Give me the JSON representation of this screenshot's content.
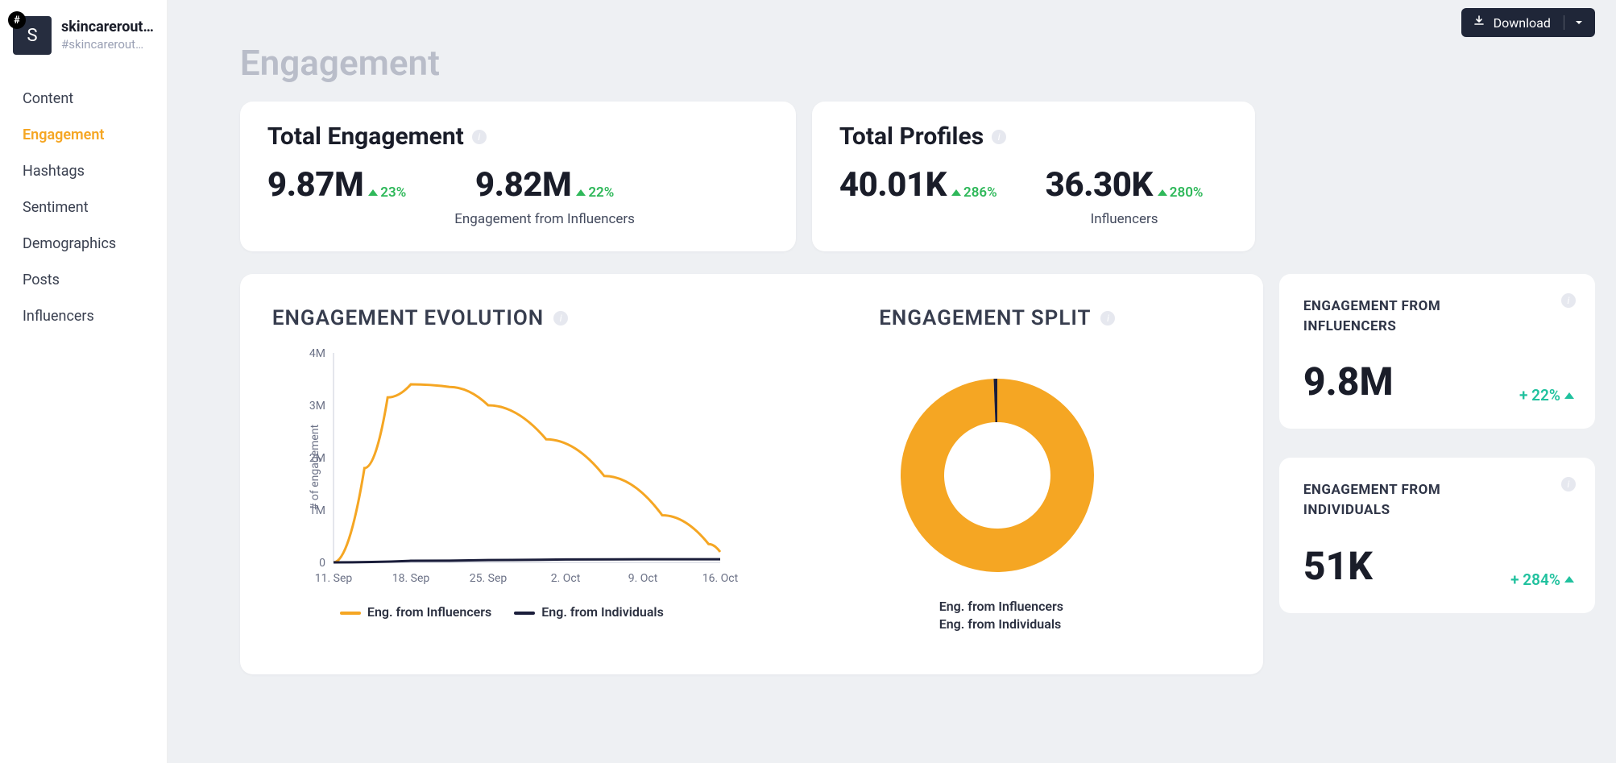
{
  "colors": {
    "accent": "#f5a623",
    "dark": "#1f2638",
    "pos_green": "#2fb85a",
    "teal": "#20c19e",
    "bg": "#eef0f3",
    "card": "#ffffff",
    "muted": "#b9bdc9",
    "text": "#1a1d29",
    "grid": "#d9dce4",
    "navy": "#1a1d3a"
  },
  "brand": {
    "badge_letter": "S",
    "hash": "#",
    "title": "skincarerout…",
    "subtitle": "#skincarerout…"
  },
  "nav": {
    "items": [
      {
        "label": "Content",
        "active": false
      },
      {
        "label": "Engagement",
        "active": true
      },
      {
        "label": "Hashtags",
        "active": false
      },
      {
        "label": "Sentiment",
        "active": false
      },
      {
        "label": "Demographics",
        "active": false
      },
      {
        "label": "Posts",
        "active": false
      },
      {
        "label": "Influencers",
        "active": false
      }
    ]
  },
  "download": {
    "label": "Download"
  },
  "page": {
    "title": "Engagement"
  },
  "total_engagement": {
    "title": "Total Engagement",
    "primary": {
      "value": "9.87M",
      "delta": "23%",
      "dir": "up"
    },
    "secondary": {
      "value": "9.82M",
      "delta": "22%",
      "dir": "up",
      "sub": "Engagement from Influencers"
    }
  },
  "total_profiles": {
    "title": "Total Profiles",
    "primary": {
      "value": "40.01K",
      "delta": "286%",
      "dir": "up"
    },
    "secondary": {
      "value": "36.30K",
      "delta": "280%",
      "dir": "up",
      "sub": "Influencers"
    }
  },
  "evolution": {
    "title": "ENGAGEMENT EVOLUTION",
    "type": "line",
    "ylabel": "# of engagement",
    "yticks": [
      "0",
      "1M",
      "2M",
      "3M",
      "4M"
    ],
    "ylim": [
      0,
      4000000
    ],
    "xticks": [
      "11. Sep",
      "18. Sep",
      "25. Sep",
      "2. Oct",
      "9. Oct",
      "16. Oct"
    ],
    "series": [
      {
        "name": "Eng. from Influencers",
        "color": "#f5a623",
        "points": [
          [
            0,
            0
          ],
          [
            0.08,
            1800000
          ],
          [
            0.14,
            3150000
          ],
          [
            0.2,
            3400000
          ],
          [
            0.3,
            3350000
          ],
          [
            0.4,
            3000000
          ],
          [
            0.55,
            2350000
          ],
          [
            0.7,
            1650000
          ],
          [
            0.85,
            900000
          ],
          [
            0.97,
            350000
          ],
          [
            1.0,
            200000
          ]
        ]
      },
      {
        "name": "Eng. from Individuals",
        "color": "#1a1d3a",
        "points": [
          [
            0,
            0
          ],
          [
            0.2,
            30000
          ],
          [
            0.4,
            45000
          ],
          [
            0.6,
            55000
          ],
          [
            0.8,
            60000
          ],
          [
            1.0,
            60000
          ]
        ]
      }
    ],
    "line_width": 3
  },
  "split": {
    "title": "ENGAGEMENT SPLIT",
    "type": "donut",
    "slices": [
      {
        "name": "Eng. from Influencers",
        "value": 99.4,
        "color": "#f5a623"
      },
      {
        "name": "Eng. from Individuals",
        "value": 0.6,
        "color": "#1a1d3a"
      }
    ],
    "inner_radius_pct": 55
  },
  "side": {
    "influencers": {
      "title": "ENGAGEMENT FROM INFLUENCERS",
      "value": "9.8M",
      "delta": "+ 22%"
    },
    "individuals": {
      "title": "ENGAGEMENT FROM INDIVIDUALS",
      "value": "51K",
      "delta": "+ 284%"
    }
  }
}
